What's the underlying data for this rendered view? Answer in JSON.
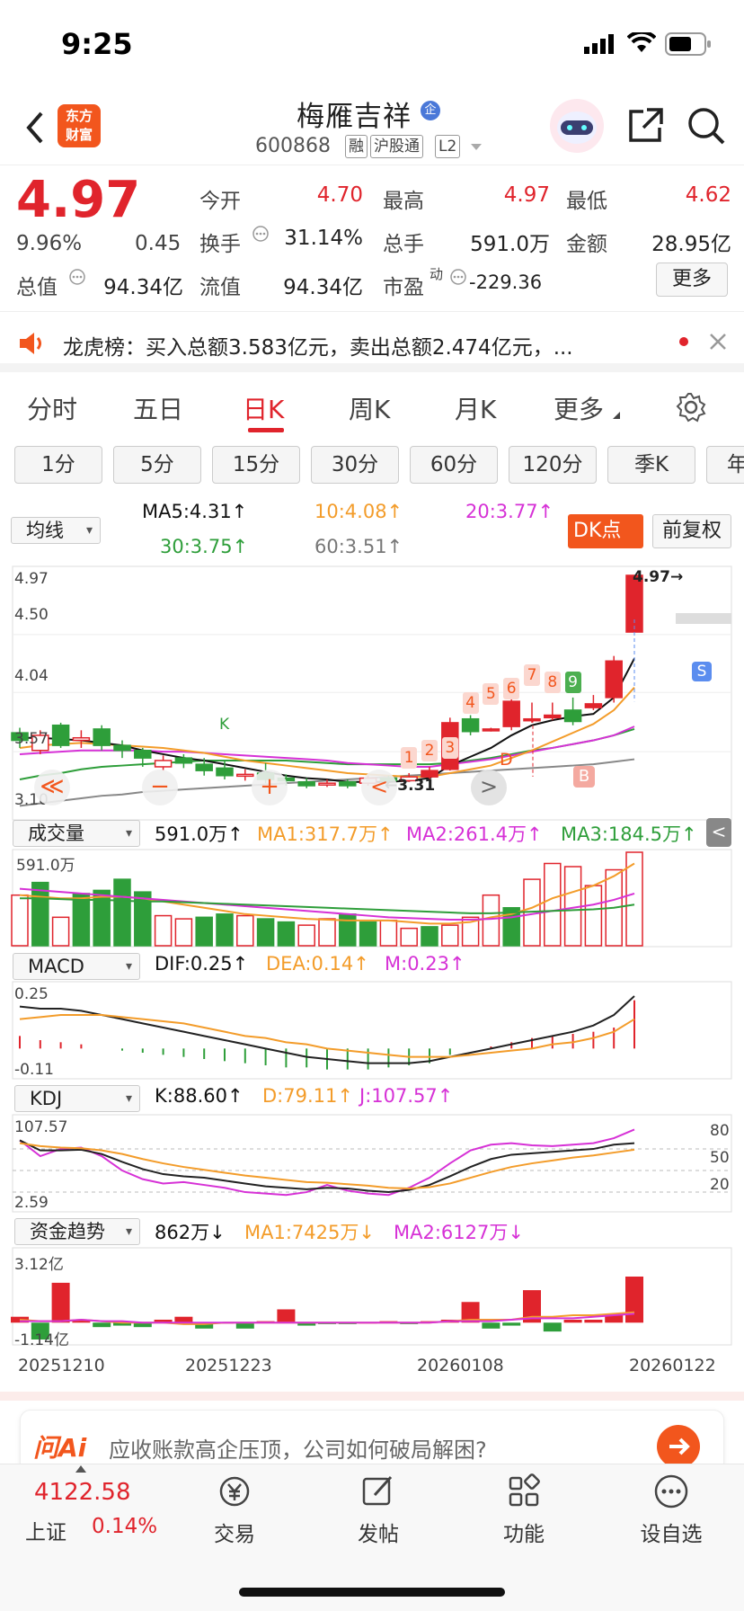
{
  "status": {
    "time": "9:25"
  },
  "header": {
    "logo_line1": "东方",
    "logo_line2": "财富",
    "name": "梅雁吉祥",
    "badge": "企",
    "code": "600868",
    "tags": [
      "融",
      "沪股通",
      "L2"
    ]
  },
  "quote": {
    "price": "4.97",
    "pct": "9.96%",
    "chg": "0.45",
    "open_label": "今开",
    "open": "4.70",
    "high_label": "最高",
    "high": "4.97",
    "low_label": "最低",
    "low": "4.62",
    "turnover_label": "换手",
    "turnover": "31.14%",
    "volume_label": "总手",
    "volume": "591.0万",
    "amount_label": "金额",
    "amount": "28.95亿",
    "mcap_label": "总值",
    "mcap": "94.34亿",
    "float_label": "流值",
    "float": "94.34亿",
    "pe_label": "市盈",
    "pe_sup": "动",
    "pe": "-229.36",
    "more": "更多"
  },
  "notice": {
    "text": "龙虎榜：买入总额3.583亿元，卖出总额2.474亿元，..."
  },
  "tabs": [
    "分时",
    "五日",
    "日K",
    "周K",
    "月K",
    "更多"
  ],
  "chips": [
    "1分",
    "5分",
    "15分",
    "30分",
    "60分",
    "120分",
    "季K",
    "年"
  ],
  "ma": {
    "select": "均线",
    "ma5": "MA5:4.31↑",
    "ma10": "10:4.08↑",
    "ma20": "20:3.77↑",
    "ma30": "30:3.75↑",
    "ma60": "60:3.51↑",
    "dk": "DK点",
    "fq": "前复权"
  },
  "kchart": {
    "ticks": [
      "4.97",
      "4.50",
      "4.04",
      "3.57",
      "3.10"
    ],
    "high_label": "4.97→",
    "low_label": "←3.31",
    "sell": "S",
    "buy": "B",
    "k": "K",
    "d": "D",
    "nums": [
      "1",
      "2",
      "3",
      "4",
      "5",
      "6",
      "7",
      "8",
      "9"
    ],
    "nav_left": "≪",
    "nav_minus": "−",
    "nav_plus": "+",
    "nav_prev": "<",
    "nav_next": ">"
  },
  "vol": {
    "select": "成交量",
    "v": "591.0万↑",
    "ma1": "MA1:317.7万↑",
    "ma2": "MA2:261.4万↑",
    "ma3": "MA3:184.5万↑",
    "tick": "591.0万"
  },
  "macd": {
    "select": "MACD",
    "dif": "DIF:0.25↑",
    "dea": "DEA:0.14↑",
    "m": "M:0.23↑",
    "top": "0.25",
    "bot": "-0.11"
  },
  "kdj": {
    "select": "KDJ",
    "k": "K:88.60↑",
    "d": "D:79.11↑",
    "j": "J:107.57↑",
    "top": "107.57",
    "bot": "2.59",
    "l80": "80",
    "l50": "50",
    "l20": "20"
  },
  "fund": {
    "select": "资金趋势",
    "v": "862万↓",
    "ma1": "MA1:7425万↓",
    "ma2": "MA2:6127万↓",
    "top": "3.12亿",
    "bot": "-1.14亿"
  },
  "dates": [
    "20251210",
    "20251223",
    "20260108",
    "20260122"
  ],
  "ask": {
    "brand": "问Ai",
    "text": "应收账款高企压顶，公司如何破局解困?"
  },
  "bottom": {
    "index_val": "4122.58",
    "index_name": "上证",
    "index_pct": "0.14%",
    "items": [
      "交易",
      "发帖",
      "功能",
      "设自选"
    ]
  },
  "colors": {
    "up": "#e0242c",
    "down": "#2e9e3a",
    "orange": "#f39c2a",
    "purple": "#d631d6"
  }
}
